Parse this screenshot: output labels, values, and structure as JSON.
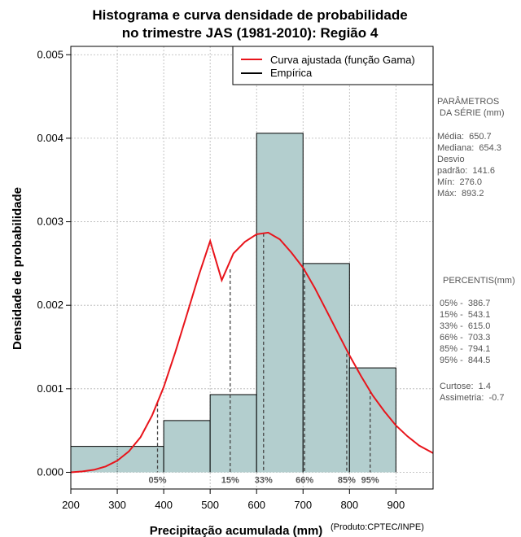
{
  "chart_data": {
    "type": "bar",
    "title_lines": [
      "Histograma e curva densidade de probabilidade",
      "no trimestre JAS (1981-2010): Região 4"
    ],
    "xlabel": "Precipitação acumulada (mm)",
    "ylabel": "Densidade de probabilidade",
    "credit": "(Produto:CPTEC/INPE)",
    "xlim": [
      200,
      980
    ],
    "ylim": [
      -0.0002,
      0.0051
    ],
    "x_ticks": [
      200,
      300,
      400,
      500,
      600,
      700,
      800,
      900
    ],
    "x_tick_labels": [
      "200",
      "300",
      "400",
      "500",
      "600",
      "700",
      "800",
      "900"
    ],
    "y_ticks": [
      0,
      0.001,
      0.002,
      0.003,
      0.004,
      0.005
    ],
    "y_tick_labels": [
      "0.000",
      "0.001",
      "0.002",
      "0.003",
      "0.004",
      "0.005"
    ],
    "grid": true,
    "bins": [
      {
        "from": 200,
        "to": 400,
        "density": 0.00031
      },
      {
        "from": 400,
        "to": 500,
        "density": 0.00062
      },
      {
        "from": 500,
        "to": 600,
        "density": 0.00093
      },
      {
        "from": 600,
        "to": 700,
        "density": 0.00406
      },
      {
        "from": 700,
        "to": 800,
        "density": 0.0025
      },
      {
        "from": 800,
        "to": 900,
        "density": 0.00125
      }
    ],
    "fitted_curve": {
      "name": "Curva ajustada (função Gama)",
      "color": "#e8141b",
      "x": [
        200,
        225,
        250,
        275,
        300,
        325,
        350,
        375,
        400,
        425,
        450,
        475,
        500,
        525,
        550,
        575,
        600,
        625,
        650,
        675,
        700,
        725,
        750,
        775,
        800,
        825,
        850,
        875,
        900,
        925,
        950,
        980
      ],
      "y": [
        0.0,
        1e-05,
        3e-05,
        7e-05,
        0.00014,
        0.00025,
        0.00042,
        0.00068,
        0.00102,
        0.00144,
        0.00189,
        0.00235,
        0.00277,
        0.0023,
        0.00262,
        0.00276,
        0.00285,
        0.00287,
        0.00279,
        0.00263,
        0.00245,
        0.00221,
        0.00194,
        0.00167,
        0.0014,
        0.00115,
        0.00092,
        0.00073,
        0.00056,
        0.00043,
        0.00032,
        0.00023
      ]
    },
    "empirical": {
      "name": "Empírica",
      "color": "#000000"
    },
    "bar_color": "#b3cece",
    "percentile_markers": [
      {
        "label": "05%",
        "x": 386.7,
        "y": 0.00083
      },
      {
        "label": "15%",
        "x": 543.1,
        "y": 0.00243
      },
      {
        "label": "33%",
        "x": 615.0,
        "y": 0.00286
      },
      {
        "label": "66%",
        "x": 703.3,
        "y": 0.00244
      },
      {
        "label": "85%",
        "x": 794.1,
        "y": 0.00142
      },
      {
        "label": "95%",
        "x": 844.5,
        "y": 0.00098
      }
    ],
    "legend_position": "top-right"
  },
  "side_panel": {
    "params_title_1": "PARÂMETROS",
    "params_title_2": " DA SÉRIE (mm)",
    "media": "Média:  650.7",
    "mediana": "Mediana:  654.3",
    "desvio_1": "Desvio",
    "desvio_2": "padrão:  141.6",
    "min": "Mín:  276.0",
    "max": "Máx:  893.2",
    "percentis_title": "PERCENTIS(mm)",
    "p05": "05% -  386.7",
    "p15": "15% -  543.1",
    "p33": "33% -  615.0",
    "p66": "66% -  703.3",
    "p85": "85% -  794.1",
    "p95": "95% -  844.5",
    "curtose": "Curtose:  1.4",
    "assimetria": "Assimetria:  -0.7"
  }
}
